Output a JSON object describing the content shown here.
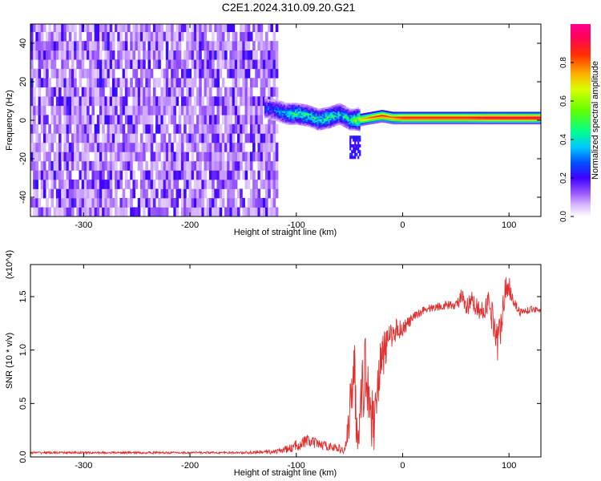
{
  "title": "C2E1.2024.310.09.20.G21",
  "chart_data": [
    {
      "type": "heatmap",
      "xlabel": "Height of straight line (km)",
      "ylabel": "Frequency (Hz)",
      "xlim": [
        -350,
        130
      ],
      "ylim": [
        -50,
        50
      ],
      "xticks": [
        -300,
        -200,
        -100,
        0,
        100
      ],
      "yticks": [
        -40,
        -20,
        0,
        20,
        40
      ],
      "xtick_labels": [
        "-300",
        "-200",
        "-100",
        "0",
        "100"
      ],
      "ytick_labels": [
        "-40",
        "-20",
        "0",
        "20",
        "40"
      ],
      "colorbar": {
        "label": "Normalized spectral amplitude",
        "range": [
          0,
          1
        ],
        "ticks": [
          0.0,
          0.2,
          0.4,
          0.6,
          0.8
        ],
        "tick_labels": [
          "0.0",
          "0.2",
          "0.4",
          "0.6",
          "0.8"
        ],
        "colormap": "rainbow",
        "colors": [
          "#ffffff",
          "#e8d4ff",
          "#a060ff",
          "#6020e0",
          "#0000ff",
          "#00c8ff",
          "#00ff80",
          "#80ff00",
          "#ffff00",
          "#ff8000",
          "#ff0000",
          "#ff0090"
        ]
      },
      "noise_region": {
        "x_range": [
          -350,
          -118
        ],
        "f_range": [
          -50,
          50
        ]
      },
      "ridge": {
        "x": [
          -130,
          -120,
          -110,
          -100,
          -90,
          -80,
          -70,
          -60,
          -50,
          -40,
          -30,
          -20,
          -10,
          0,
          20,
          40,
          60,
          80,
          100,
          130
        ],
        "f": [
          6,
          5,
          3,
          3,
          2,
          0,
          1,
          3,
          0,
          0,
          1,
          2,
          1,
          1,
          1,
          1,
          1,
          1,
          1,
          1
        ],
        "amplitude": [
          0.3,
          0.35,
          0.45,
          0.55,
          0.5,
          0.5,
          0.55,
          0.45,
          0.5,
          0.75,
          0.85,
          0.9,
          0.85,
          0.95,
          0.95,
          0.95,
          0.95,
          1.0,
          1.0,
          1.0
        ]
      },
      "blob": {
        "x_range": [
          -50,
          -40
        ],
        "f_range": [
          -20,
          -8
        ]
      }
    },
    {
      "type": "line",
      "xlabel": "Height of straight line (km)",
      "ylabel": "SNR (10 * v/v)",
      "y_multiplier": "(x10^4)",
      "xlim": [
        -350,
        130
      ],
      "ylim": [
        0,
        1.8
      ],
      "xticks": [
        -300,
        -200,
        -100,
        0,
        100
      ],
      "yticks": [
        0.0,
        0.5,
        1.0,
        1.5
      ],
      "xtick_labels": [
        "-300",
        "-200",
        "-100",
        "0",
        "100"
      ],
      "ytick_labels": [
        "0.0",
        "0.5",
        "1.0",
        "1.5"
      ],
      "color": "#e03030",
      "series": [
        {
          "x": [
            -350,
            -300,
            -250,
            -200,
            -150,
            -120,
            -105,
            -98,
            -90,
            -80,
            -70,
            -60,
            -55,
            -50,
            -46,
            -44,
            -42,
            -38,
            -34,
            -30,
            -27,
            -25,
            -20,
            -15,
            -10,
            -5,
            0,
            10,
            20,
            30,
            40,
            50,
            55,
            60,
            65,
            70,
            75,
            80,
            85,
            90,
            95,
            100,
            105,
            110,
            120,
            130
          ],
          "y": [
            0.04,
            0.04,
            0.04,
            0.04,
            0.04,
            0.05,
            0.08,
            0.12,
            0.15,
            0.12,
            0.1,
            0.08,
            0.05,
            0.3,
            1.0,
            0.4,
            0.2,
            0.6,
            0.9,
            0.4,
            0.3,
            0.6,
            0.9,
            1.05,
            1.15,
            1.2,
            1.2,
            1.3,
            1.38,
            1.4,
            1.42,
            1.42,
            1.5,
            1.38,
            1.45,
            1.4,
            1.35,
            1.45,
            1.3,
            1.05,
            1.5,
            1.6,
            1.45,
            1.35,
            1.38,
            1.38
          ],
          "noise": [
            0.01,
            0.01,
            0.01,
            0.01,
            0.01,
            0.02,
            0.04,
            0.06,
            0.06,
            0.05,
            0.04,
            0.04,
            0.03,
            0.25,
            0.4,
            0.3,
            0.15,
            0.3,
            0.4,
            0.3,
            0.25,
            0.25,
            0.25,
            0.15,
            0.12,
            0.1,
            0.08,
            0.05,
            0.04,
            0.04,
            0.04,
            0.04,
            0.08,
            0.1,
            0.1,
            0.08,
            0.1,
            0.12,
            0.15,
            0.2,
            0.15,
            0.12,
            0.06,
            0.04,
            0.03,
            0.03
          ]
        }
      ]
    }
  ]
}
